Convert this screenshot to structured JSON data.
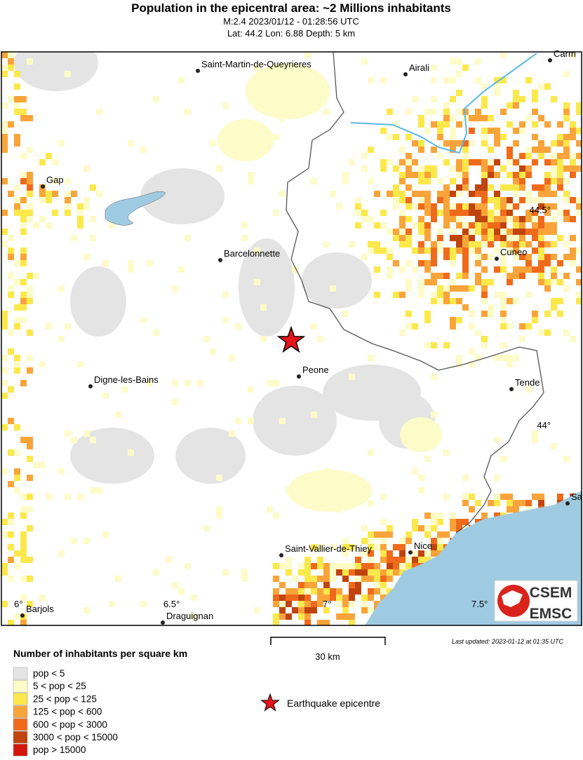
{
  "header": {
    "title": "Population in the epicentral area: ~2 Millions inhabitants",
    "subtitle": "M:2.4 2023/01/12 - 01:28:56 UTC",
    "location": "Lat: 44.2 Lon: 6.88 Depth: 5 km"
  },
  "map": {
    "places": [
      "Saint-Martin-de-Queyrieres",
      "Airali",
      "Carm",
      "Gap",
      "Barcelonnette",
      "Cuneo",
      "Peone",
      "Tende",
      "Digne-les-Bains",
      "Sa",
      "Saint-Vallier-de-Thiey",
      "Nice",
      "Barjols",
      "Draguignan"
    ],
    "graticule": [
      "44.5°",
      "44°",
      "6°",
      "6.5°",
      "7°",
      "7.5°"
    ],
    "logo": {
      "top": "CSEM",
      "bottom": "EMSC"
    },
    "scale": "30 km",
    "updated": "Last updated: 2023-01-12 at 01:35 UTC"
  },
  "legend": {
    "title": "Number of inhabitants per square km",
    "items": [
      {
        "label": "pop < 5",
        "color": "#e4e4e4"
      },
      {
        "label": "5 < pop < 25",
        "color": "#fdfbc8"
      },
      {
        "label": "25 < pop < 125",
        "color": "#fbe94c"
      },
      {
        "label": "125 < pop < 600",
        "color": "#f9a43a"
      },
      {
        "label": "600 < pop < 3000",
        "color": "#f06a1c"
      },
      {
        "label": "3000 < pop < 15000",
        "color": "#c0440e"
      },
      {
        "label": "pop > 15000",
        "color": "#d3170c"
      }
    ],
    "epicentre": "Earthquake epicentre"
  }
}
